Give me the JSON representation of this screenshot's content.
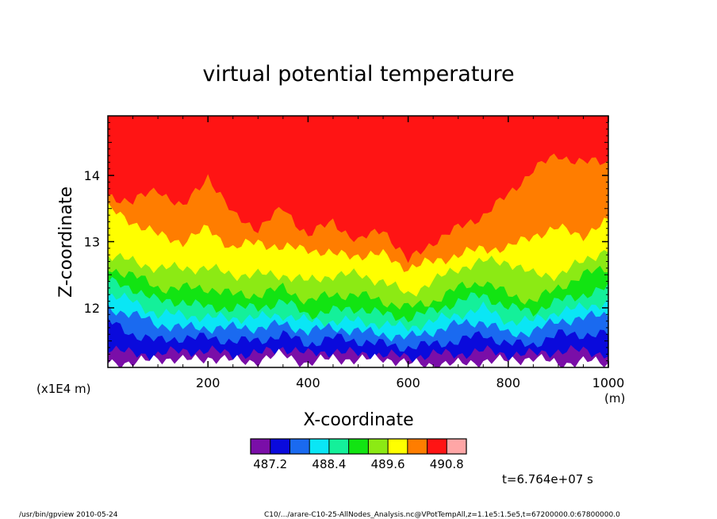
{
  "chart_data": {
    "type": "heatmap",
    "title": "virtual potential temperature",
    "xlabel": "X-coordinate",
    "ylabel": "Z-coordinate",
    "x_unit": "(m)",
    "y_unit": "(x1E4 m)",
    "xlim": [
      0,
      1000
    ],
    "ylim": [
      11.1,
      14.9
    ],
    "x_ticks": [
      "200",
      "400",
      "600",
      "800",
      "1000"
    ],
    "y_ticks": [
      "12",
      "13",
      "14"
    ],
    "colorbar": {
      "levels": [
        487.2,
        487.6,
        488.0,
        488.4,
        488.8,
        489.2,
        489.6,
        490.0,
        490.4,
        490.8
      ],
      "labels": [
        "487.2",
        "488.4",
        "489.6",
        "490.8"
      ],
      "colors": [
        "#7a0ea8",
        "#0a0adc",
        "#1a6af0",
        "#0ae6f5",
        "#14f09a",
        "#12e412",
        "#8cea14",
        "#ffff00",
        "#ff7d00",
        "#ff1414",
        "#ffa6a6"
      ]
    },
    "field_layers": [
      {
        "color": "#ff7d00",
        "top_z": [
          13.7,
          13.6,
          13.8,
          13.5,
          14.0,
          13.4,
          13.2,
          13.5,
          13.1,
          13.3,
          13.0,
          13.2,
          12.7,
          13.0,
          13.2,
          13.4,
          13.7,
          14.1,
          14.3,
          14.2,
          14.2
        ]
      },
      {
        "color": "#ffff00",
        "top_z": [
          13.5,
          13.3,
          13.1,
          13.0,
          13.2,
          12.9,
          13.0,
          12.9,
          12.9,
          12.8,
          12.8,
          12.8,
          12.6,
          12.7,
          12.8,
          12.9,
          12.9,
          13.1,
          13.2,
          13.1,
          13.3
        ]
      },
      {
        "color": "#8cea14",
        "top_z": [
          12.8,
          12.7,
          12.6,
          12.6,
          12.6,
          12.5,
          12.5,
          12.5,
          12.4,
          12.5,
          12.5,
          12.4,
          12.2,
          12.4,
          12.6,
          12.7,
          12.7,
          12.5,
          12.5,
          12.7,
          12.9
        ]
      },
      {
        "color": "#12e412",
        "top_z": [
          12.6,
          12.5,
          12.3,
          12.3,
          12.3,
          12.2,
          12.2,
          12.3,
          12.1,
          12.2,
          12.2,
          12.1,
          12.0,
          12.1,
          12.3,
          12.4,
          12.2,
          12.1,
          12.3,
          12.5,
          12.6
        ]
      },
      {
        "color": "#14f09a",
        "top_z": [
          12.4,
          12.3,
          12.1,
          12.1,
          12.0,
          12.0,
          12.0,
          12.1,
          11.9,
          11.95,
          12.0,
          11.9,
          11.85,
          11.95,
          12.1,
          12.2,
          12.0,
          11.95,
          12.1,
          12.2,
          12.3
        ]
      },
      {
        "color": "#0ae6f5",
        "top_z": [
          12.2,
          12.1,
          11.9,
          11.9,
          11.85,
          11.85,
          11.85,
          11.9,
          11.8,
          11.8,
          11.8,
          11.75,
          11.7,
          11.8,
          11.9,
          12.0,
          11.8,
          11.8,
          11.95,
          12.0,
          12.1
        ]
      },
      {
        "color": "#1a6af0",
        "top_z": [
          12.0,
          11.9,
          11.75,
          11.7,
          11.7,
          11.7,
          11.7,
          11.75,
          11.65,
          11.7,
          11.65,
          11.6,
          11.55,
          11.65,
          11.75,
          11.8,
          11.6,
          11.65,
          11.8,
          11.85,
          11.9
        ]
      },
      {
        "color": "#0a0adc",
        "top_z": [
          11.8,
          11.6,
          11.5,
          11.55,
          11.55,
          11.5,
          11.5,
          11.6,
          11.45,
          11.55,
          11.5,
          11.45,
          11.4,
          11.45,
          11.5,
          11.6,
          11.45,
          11.45,
          11.6,
          11.6,
          11.6
        ]
      },
      {
        "color": "#7a0ea8",
        "top_z": [
          11.4,
          11.3,
          11.3,
          11.35,
          11.35,
          11.3,
          11.3,
          11.4,
          11.3,
          11.35,
          11.3,
          11.3,
          11.25,
          11.3,
          11.3,
          11.35,
          11.3,
          11.3,
          11.35,
          11.35,
          11.3
        ]
      },
      {
        "color": "#ffffff",
        "top_z": [
          11.2,
          11.15,
          11.25,
          11.2,
          11.25,
          11.2,
          11.2,
          11.3,
          11.15,
          11.25,
          11.2,
          11.25,
          11.15,
          11.15,
          11.15,
          11.2,
          11.2,
          11.25,
          11.15,
          11.2,
          11.15
        ]
      }
    ]
  },
  "annotations": {
    "time": "t=6.764e+07 s",
    "footer_left": "/usr/bin/gpview   2010-05-24",
    "footer_right": "C10/.../arare-C10-25-AllNodes_Analysis.nc@VPotTempAll,z=1.1e5:1.5e5,t=67200000.0:67800000.0"
  }
}
